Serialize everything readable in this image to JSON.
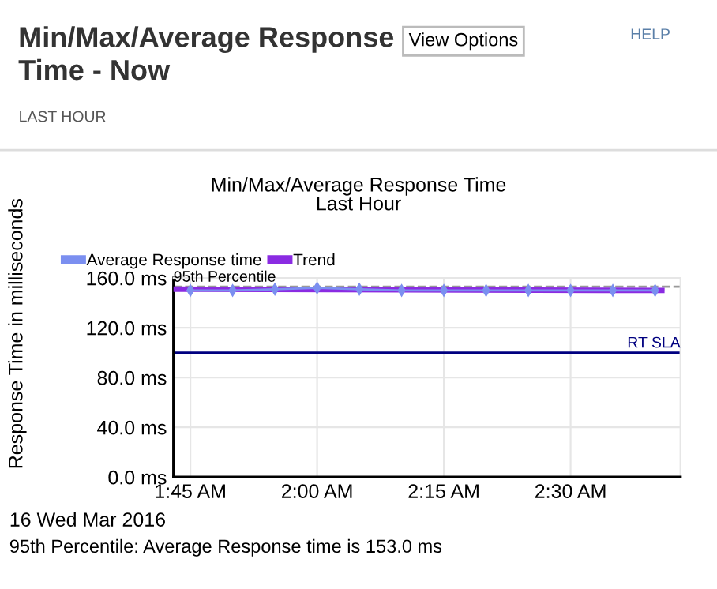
{
  "chart_data": {
    "type": "line",
    "title": "Min/Max/Average Response Time",
    "subtitle": "Last Hour",
    "ylabel": "Response Time in milliseconds",
    "x": [
      1.75,
      1.8333,
      1.9167,
      2.0,
      2.0833,
      2.1667,
      2.25,
      2.3333,
      2.4167,
      2.5,
      2.5833,
      2.6667
    ],
    "series": [
      {
        "name": "Average Response time",
        "color": "#7b8ff0",
        "values": [
          150,
          150,
          151,
          152,
          151,
          150,
          150,
          150,
          150,
          150,
          150,
          150
        ]
      },
      {
        "name": "Trend",
        "color": "#8a2be2",
        "marker": "none",
        "x": [
          1.72,
          2.68
        ],
        "values": [
          151,
          150
        ]
      }
    ],
    "xlim": [
      1.7167,
      2.7167
    ],
    "xticks": [
      {
        "value": 1.75,
        "label": "1:45 AM"
      },
      {
        "value": 2.0,
        "label": "2:00 AM"
      },
      {
        "value": 2.25,
        "label": "2:15 AM"
      },
      {
        "value": 2.5,
        "label": "2:30 AM"
      }
    ],
    "ylim": [
      0,
      160
    ],
    "yticks": [
      {
        "value": 0,
        "label": "0.0 ms"
      },
      {
        "value": 40,
        "label": "40.0 ms"
      },
      {
        "value": 80,
        "label": "80.0 ms"
      },
      {
        "value": 120,
        "label": "120.0 ms"
      },
      {
        "value": 160,
        "label": "160.0 ms"
      }
    ],
    "ref_lines": [
      {
        "axis": "y",
        "value": 153,
        "label": "95th Percentile",
        "color": "#999999",
        "line_style": "dashed"
      },
      {
        "axis": "y",
        "value": 100,
        "label": "RT SLA",
        "color": "#000080",
        "line_style": "solid"
      }
    ],
    "grid": true,
    "legend": "top left",
    "marker": "diamond",
    "annotations": [
      "Min/Max/Average Response Time - Now",
      "LAST HOUR",
      "View Options",
      "HELP",
      "16 Wed Mar 2016",
      "95th Percentile: Average Response time is 153.0 ms"
    ]
  }
}
